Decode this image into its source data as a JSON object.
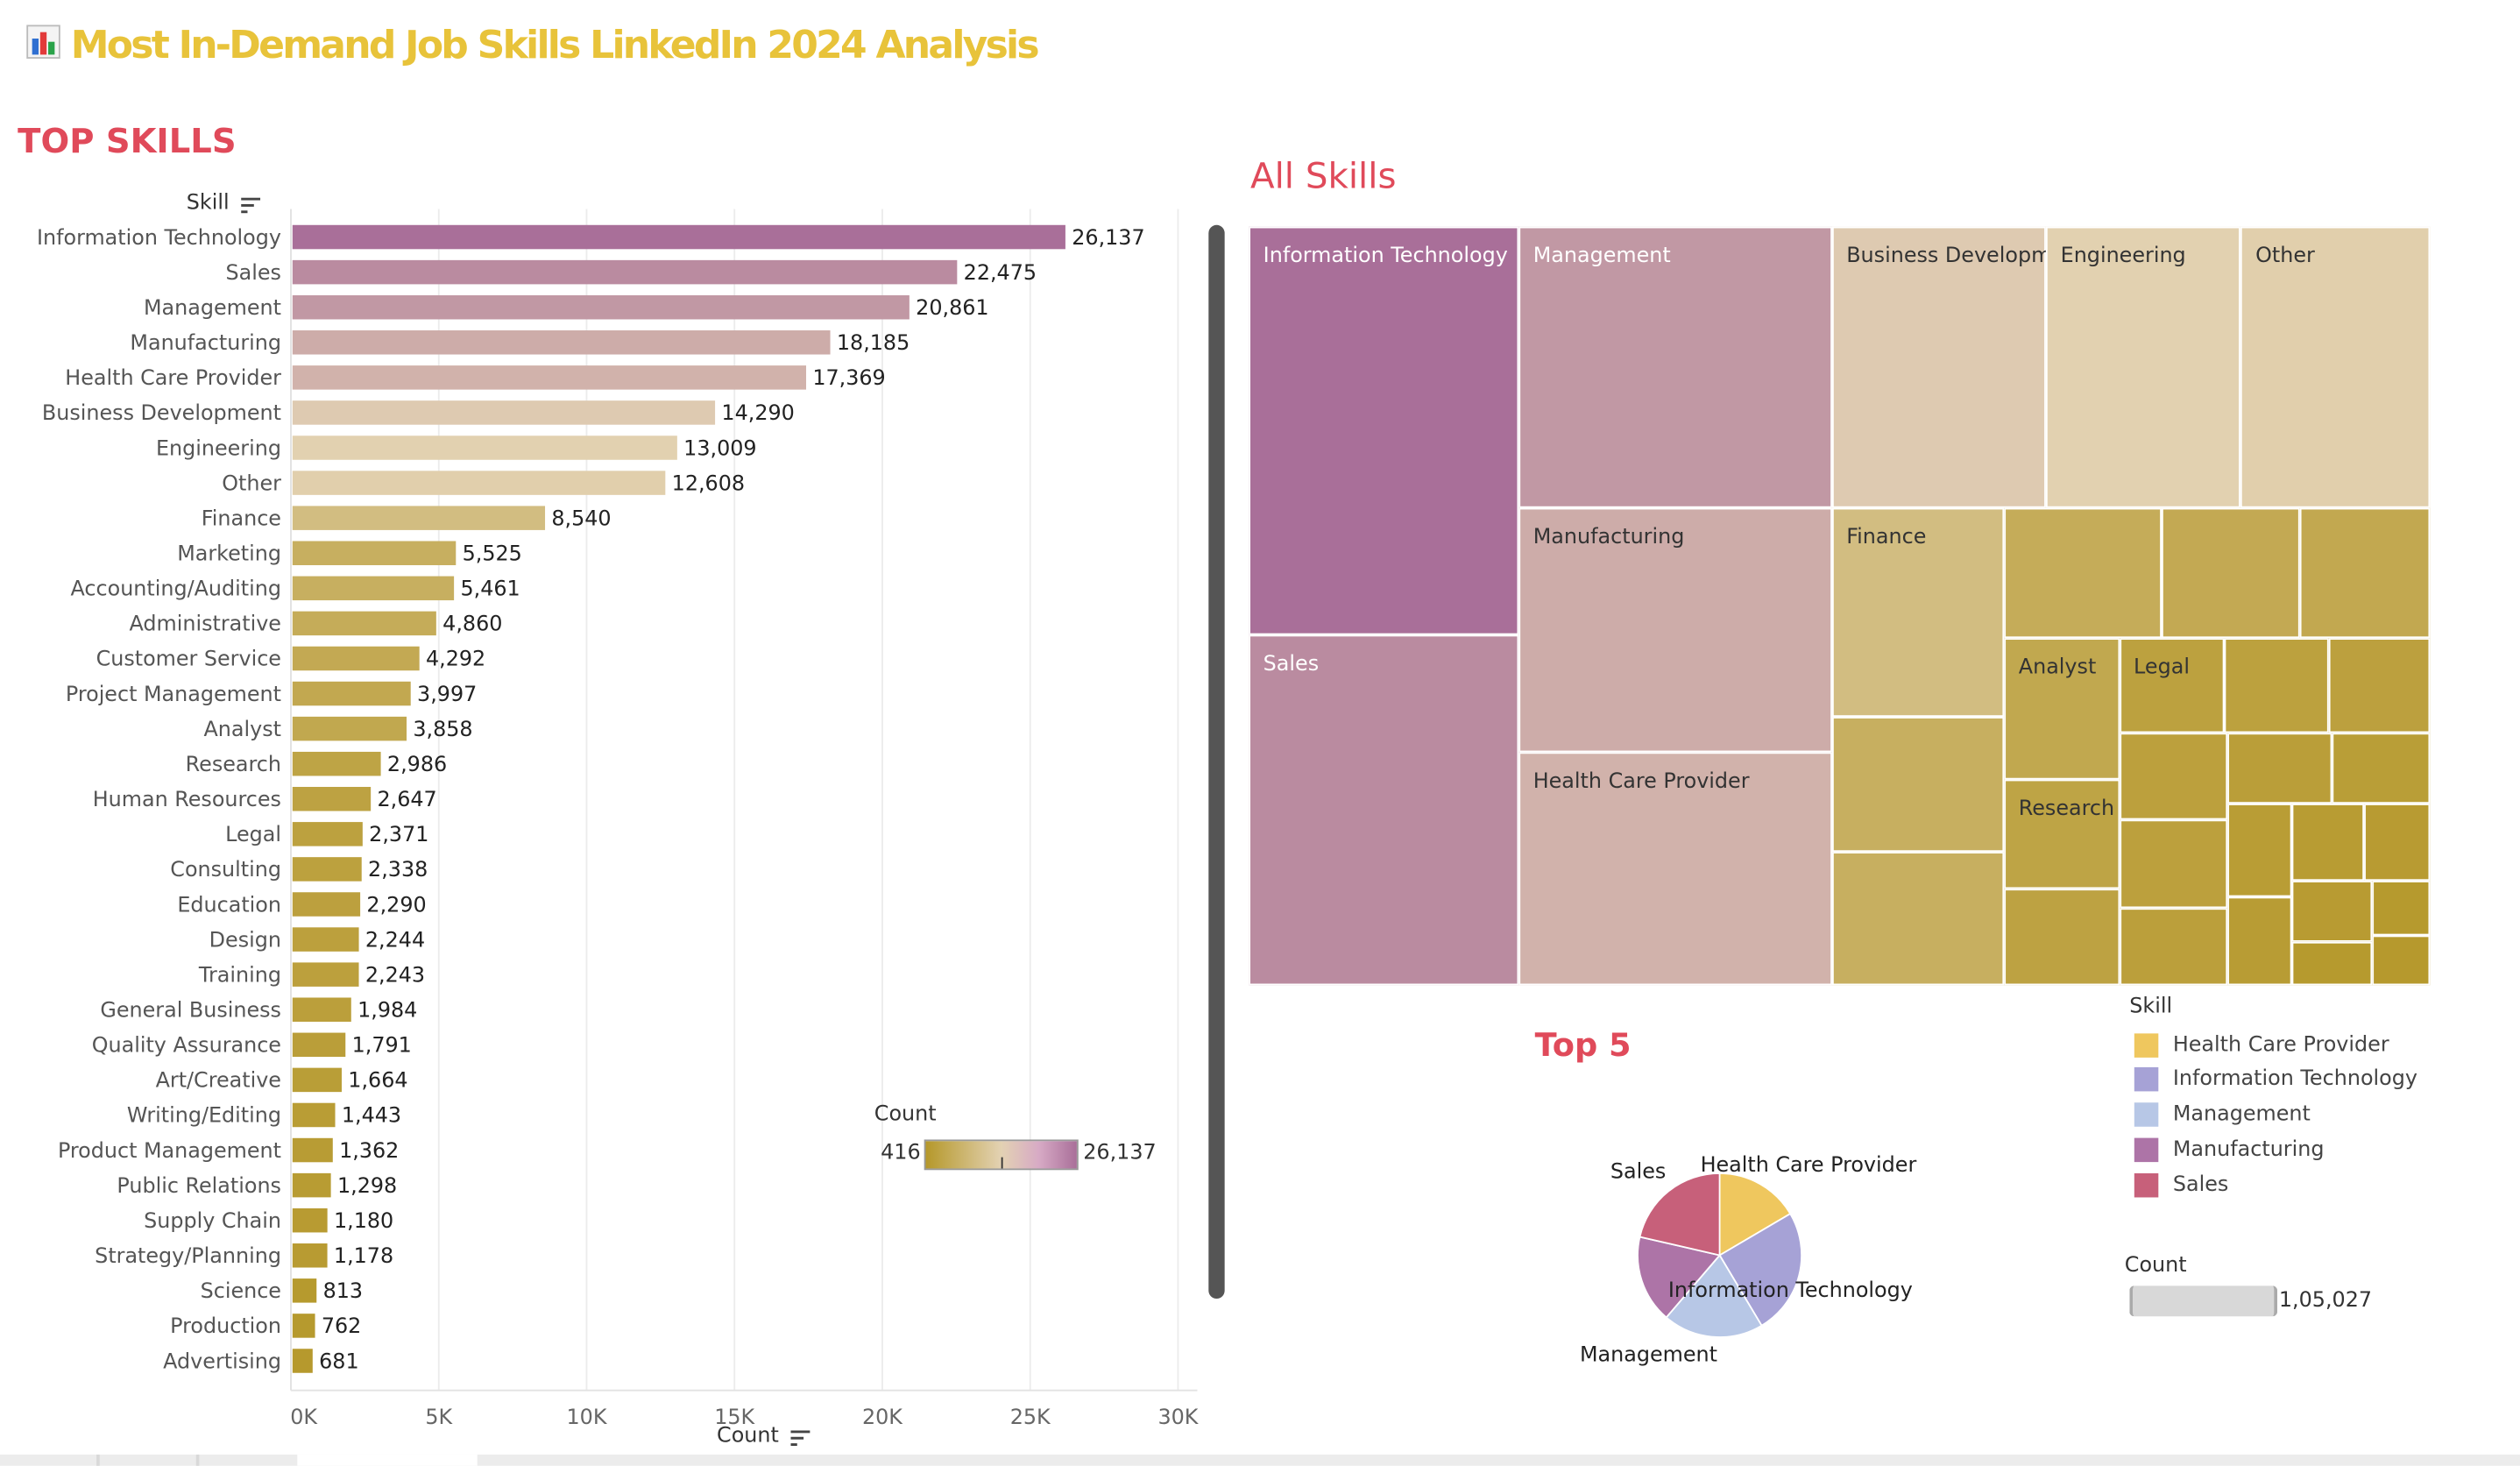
{
  "page": {
    "title": "Most In-Demand Job Skills LinkedIn 2024 Analysis",
    "title_icon": "bar-chart-icon"
  },
  "top_skills": {
    "heading": "TOP SKILLS",
    "row_header": "Skill",
    "axis_title": "Count"
  },
  "color_legend": {
    "title": "Count",
    "min_label": "416",
    "max_label": "26,137"
  },
  "treemap": {
    "heading": "All Skills"
  },
  "pie": {
    "heading": "Top 5"
  },
  "pie_legend": {
    "title": "Skill",
    "items": [
      {
        "label": "Health Care Provider",
        "color": "#efc75e"
      },
      {
        "label": "Information Technology",
        "color": "#a6a2d6"
      },
      {
        "label": "Management",
        "color": "#b7c7e6"
      },
      {
        "label": "Manufacturing",
        "color": "#ad74a7"
      },
      {
        "label": "Sales",
        "color": "#c7607a"
      }
    ]
  },
  "size_legend": {
    "title": "Count",
    "value_label": "1,05,027"
  },
  "chart_data": [
    {
      "type": "bar",
      "orientation": "horizontal",
      "title": "TOP SKILLS",
      "xlabel": "Count",
      "ylabel": "Skill",
      "xlim": [
        0,
        30000
      ],
      "x_ticks": [
        "0K",
        "5K",
        "10K",
        "15K",
        "20K",
        "25K",
        "30K"
      ],
      "grid": true,
      "categories": [
        "Information Technology",
        "Sales",
        "Management",
        "Manufacturing",
        "Health Care Provider",
        "Business Development",
        "Engineering",
        "Other",
        "Finance",
        "Marketing",
        "Accounting/Auditing",
        "Administrative",
        "Customer Service",
        "Project Management",
        "Analyst",
        "Research",
        "Human Resources",
        "Legal",
        "Consulting",
        "Education",
        "Design",
        "Training",
        "General Business",
        "Quality Assurance",
        "Art/Creative",
        "Writing/Editing",
        "Product Management",
        "Public Relations",
        "Supply Chain",
        "Strategy/Planning",
        "Science",
        "Production",
        "Advertising"
      ],
      "values": [
        26137,
        22475,
        20861,
        18185,
        17369,
        14290,
        13009,
        12608,
        8540,
        5525,
        5461,
        4860,
        4292,
        3997,
        3858,
        2986,
        2647,
        2371,
        2338,
        2290,
        2244,
        2243,
        1984,
        1791,
        1664,
        1443,
        1362,
        1298,
        1180,
        1178,
        813,
        762,
        681
      ],
      "value_labels": [
        "26,137",
        "22,475",
        "20,861",
        "18,185",
        "17,369",
        "14,290",
        "13,009",
        "12,608",
        "8,540",
        "5,525",
        "5,461",
        "4,860",
        "4,292",
        "3,997",
        "3,858",
        "2,986",
        "2,647",
        "2,371",
        "2,338",
        "2,290",
        "2,244",
        "2,243",
        "1,984",
        "1,791",
        "1,664",
        "1,443",
        "1,362",
        "1,298",
        "1,180",
        "1,178",
        "813",
        "762",
        "681"
      ],
      "color_scale": {
        "min": 416,
        "max": 26137,
        "colors": [
          "#b5982a",
          "#e3d2b3",
          "#a96f99"
        ]
      }
    },
    {
      "type": "treemap",
      "title": "All Skills",
      "labeled_items": [
        {
          "label": "Information Technology",
          "value": 26137
        },
        {
          "label": "Sales",
          "value": 22475
        },
        {
          "label": "Management",
          "value": 20861
        },
        {
          "label": "Manufacturing",
          "value": 18185
        },
        {
          "label": "Health Care Provider",
          "value": 17369
        },
        {
          "label": "Business Development",
          "value": 14290
        },
        {
          "label": "Engineering",
          "value": 13009
        },
        {
          "label": "Other",
          "value": 12608
        },
        {
          "label": "Finance",
          "value": 8540
        },
        {
          "label": "Analyst",
          "value": 3858
        },
        {
          "label": "Research",
          "value": 2986
        },
        {
          "label": "Legal",
          "value": 2371
        }
      ]
    },
    {
      "type": "pie",
      "title": "Top 5",
      "series": [
        {
          "label": "Health Care Provider",
          "value": 17369,
          "color": "#efc75e"
        },
        {
          "label": "Information Technology",
          "value": 26137,
          "color": "#a6a2d6"
        },
        {
          "label": "Management",
          "value": 20861,
          "color": "#b7c7e6"
        },
        {
          "label": "Manufacturing",
          "value": 18185,
          "color": "#ad74a7"
        },
        {
          "label": "Sales",
          "value": 22475,
          "color": "#c7607a"
        }
      ],
      "total": 105027
    }
  ]
}
